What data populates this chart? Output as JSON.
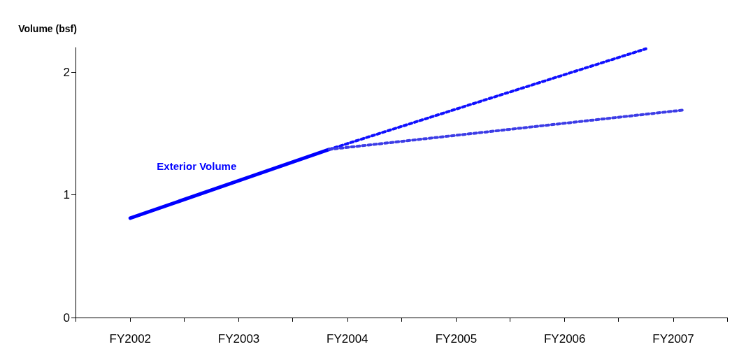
{
  "chart_data": {
    "type": "line",
    "ylabel": "Volume (bsf)",
    "xlim": [
      "2001-07",
      "2007-07"
    ],
    "xticks": [
      {
        "value": "2001-07",
        "label": null
      },
      {
        "value": "2002",
        "label": "FY2002"
      },
      {
        "value": "2002-07",
        "label": null
      },
      {
        "value": "2003",
        "label": "FY2003"
      },
      {
        "value": "2003-07",
        "label": null
      },
      {
        "value": "2004",
        "label": "FY2004"
      },
      {
        "value": "2004-07",
        "label": null
      },
      {
        "value": "2005",
        "label": "FY2005"
      },
      {
        "value": "2005-07",
        "label": null
      },
      {
        "value": "2006",
        "label": "FY2006"
      },
      {
        "value": "2006-07",
        "label": null
      },
      {
        "value": "2007",
        "label": "FY2007"
      },
      {
        "value": "2007-07",
        "label": null
      }
    ],
    "ylim": [
      0,
      2.2
    ],
    "yticks": [
      0,
      1,
      2
    ],
    "series": [
      {
        "name": "Exterior Volume",
        "color": "#0000ff",
        "line_style": "solid",
        "x": [
          "2002",
          "2003-11"
        ],
        "values": [
          0.81,
          1.37
        ]
      },
      {
        "color": "#1010ff",
        "line_style": "dotted",
        "x": [
          "2003-11",
          "2006-10"
        ],
        "values": [
          1.37,
          2.19
        ]
      },
      {
        "color": "#3c3ce6",
        "line_style": "dotted",
        "x": [
          "2003-11",
          "2007-02"
        ],
        "values": [
          1.37,
          1.69
        ]
      }
    ],
    "grid": false,
    "legend": false,
    "marker": "none"
  }
}
